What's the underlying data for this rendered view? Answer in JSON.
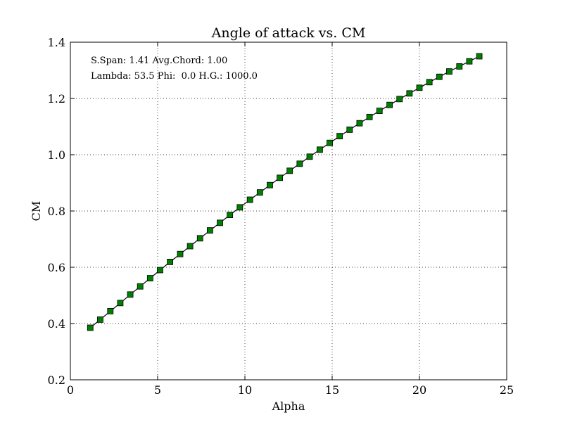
{
  "chart_data": {
    "type": "line",
    "title": "Angle of attack vs. CM",
    "xlabel": "Alpha",
    "ylabel": "CM",
    "xlim": [
      0,
      25
    ],
    "ylim": [
      0.2,
      1.4
    ],
    "xticks": [
      0,
      5,
      10,
      15,
      20,
      25
    ],
    "yticks": [
      0.2,
      0.4,
      0.6,
      0.8,
      1.0,
      1.2,
      1.4
    ],
    "xtick_labels": [
      "0",
      "5",
      "10",
      "15",
      "20",
      "25"
    ],
    "ytick_labels": [
      "0.2",
      "0.4",
      "0.6",
      "0.8",
      "1.0",
      "1.2",
      "1.4"
    ],
    "grid": true,
    "annotations": [
      "S.Span: 1.41 Avg.Chord: 1.00",
      "Lambda: 53.5 Phi:  0.0 H.G.: 1000.0"
    ],
    "marker_color": "#008000",
    "line_color": "#000000",
    "series": [
      {
        "x": [
          1.14,
          1.71,
          2.29,
          2.86,
          3.43,
          4.0,
          4.57,
          5.14,
          5.71,
          6.29,
          6.86,
          7.43,
          8.0,
          8.57,
          9.14,
          9.71,
          10.29,
          10.86,
          11.43,
          12.0,
          12.57,
          13.14,
          13.71,
          14.29,
          14.86,
          15.43,
          16.0,
          16.57,
          17.14,
          17.71,
          18.29,
          18.86,
          19.43,
          20.0,
          20.57,
          21.14,
          21.71,
          22.29,
          22.86,
          23.43
        ],
        "y": [
          0.385,
          0.414,
          0.444,
          0.473,
          0.503,
          0.532,
          0.561,
          0.59,
          0.619,
          0.647,
          0.675,
          0.703,
          0.731,
          0.758,
          0.786,
          0.813,
          0.84,
          0.866,
          0.892,
          0.918,
          0.943,
          0.968,
          0.993,
          1.018,
          1.042,
          1.066,
          1.089,
          1.112,
          1.134,
          1.156,
          1.177,
          1.198,
          1.218,
          1.238,
          1.258,
          1.277,
          1.296,
          1.314,
          1.332,
          1.35
        ]
      }
    ]
  }
}
